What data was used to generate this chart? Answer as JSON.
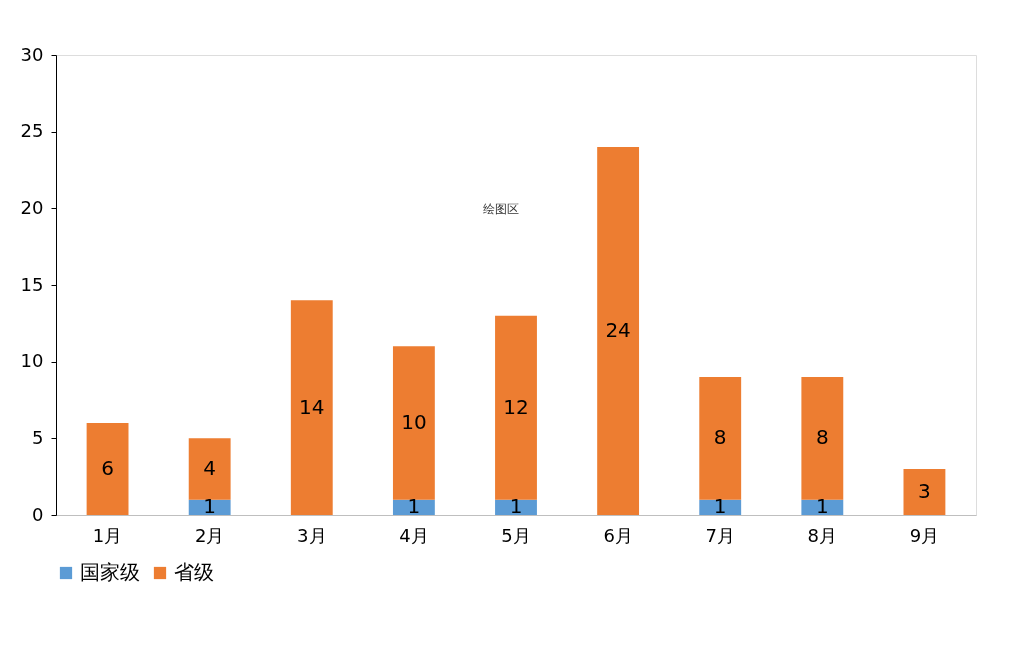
{
  "chart_data": {
    "type": "bar",
    "stacked": true,
    "categories": [
      "1月",
      "2月",
      "3月",
      "4月",
      "5月",
      "6月",
      "7月",
      "8月",
      "9月"
    ],
    "series": [
      {
        "name": "国家级",
        "color": "#5b9bd5",
        "values": [
          null,
          1,
          null,
          1,
          1,
          null,
          1,
          1,
          null
        ]
      },
      {
        "name": "省级",
        "color": "#ed7d31",
        "values": [
          6,
          4,
          14,
          10,
          12,
          24,
          8,
          8,
          3
        ]
      }
    ],
    "ylim": [
      0,
      30
    ],
    "yticks": [
      0,
      5,
      10,
      15,
      20,
      25,
      30
    ],
    "data_labels": true,
    "grid": false,
    "legend": "bottom",
    "annotations": [
      "绘图区"
    ]
  }
}
